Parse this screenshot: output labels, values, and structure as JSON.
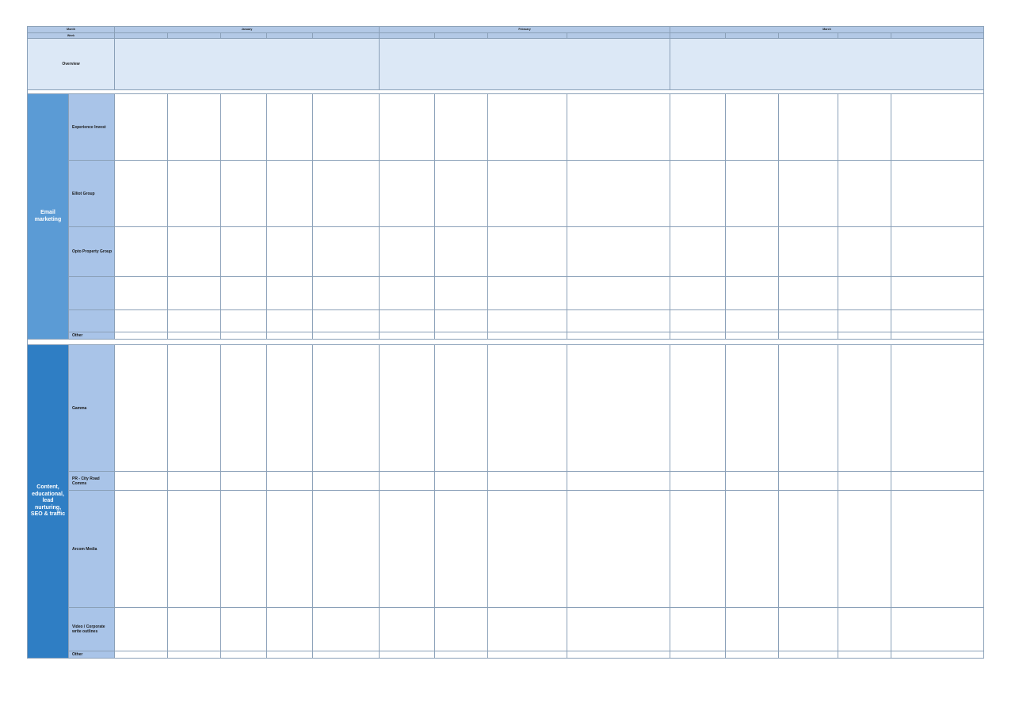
{
  "header": {
    "month_label": "Month",
    "week_label": "Week",
    "months": [
      "January",
      "February",
      "March"
    ],
    "week_cells": [
      "",
      "",
      "",
      "",
      "",
      "",
      "",
      "",
      "",
      "",
      "",
      "",
      "",
      "",
      "",
      ""
    ]
  },
  "overview": {
    "label": "Overview",
    "january": "",
    "february": "",
    "march": ""
  },
  "sections": {
    "email": "Email marketing",
    "content": "Content, educational, lead nurturing, SEO & traffic"
  },
  "categories": {
    "experience_invest": "Experience Invest",
    "elliot_group": "Elliot Group",
    "opto_property_group": "Opto Property Group",
    "row4": "",
    "row5": "",
    "other_email": "Other",
    "gamma": "Gamma",
    "city_road": "PR - City Road Comms",
    "arcom_media": "Arcom Media",
    "video": "Video / Corporate write outlines",
    "other_content": "Other"
  },
  "colors": {
    "header": "#b3c9e6",
    "overview": "#dce8f6",
    "section_email": "#5b9bd5",
    "section_content": "#2f7ec4",
    "category": "#a9c4e8"
  }
}
